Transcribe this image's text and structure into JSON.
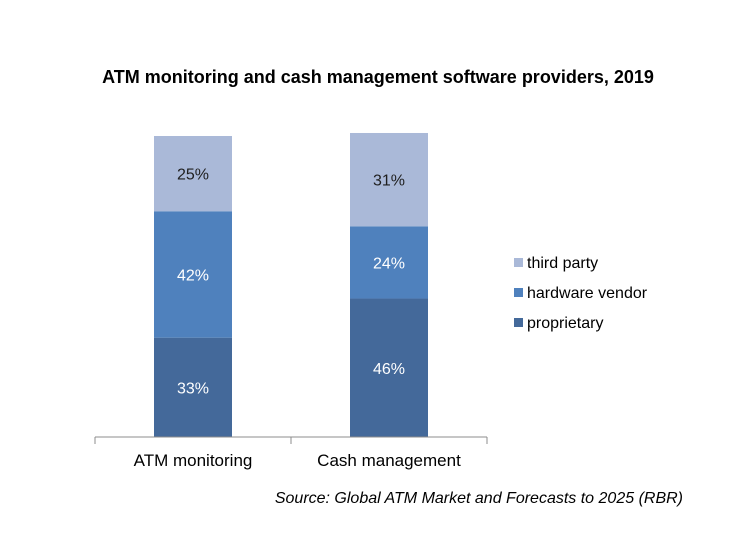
{
  "chart_data": {
    "type": "bar",
    "stacked": true,
    "title": "ATM monitoring and cash management software providers, 2019",
    "categories": [
      "ATM monitoring",
      "Cash management"
    ],
    "series": [
      {
        "name": "proprietary",
        "values": [
          33,
          46
        ],
        "labels": [
          "33%",
          "46%"
        ],
        "color": "#44699a",
        "label_color": "#ffffff"
      },
      {
        "name": "hardware vendor",
        "values": [
          42,
          24
        ],
        "labels": [
          "42%",
          "24%"
        ],
        "color": "#4f81bd",
        "label_color": "#ffffff"
      },
      {
        "name": "third party",
        "values": [
          25,
          31
        ],
        "labels": [
          "25%",
          "31%"
        ],
        "color": "#aab9d8",
        "label_color": "#1f1f1f"
      }
    ],
    "ylim": [
      0,
      100
    ],
    "unit": "%",
    "grid": false,
    "legend_position": "right",
    "source": "Source: Global ATM Market and Forecasts to 2025 (RBR)"
  }
}
